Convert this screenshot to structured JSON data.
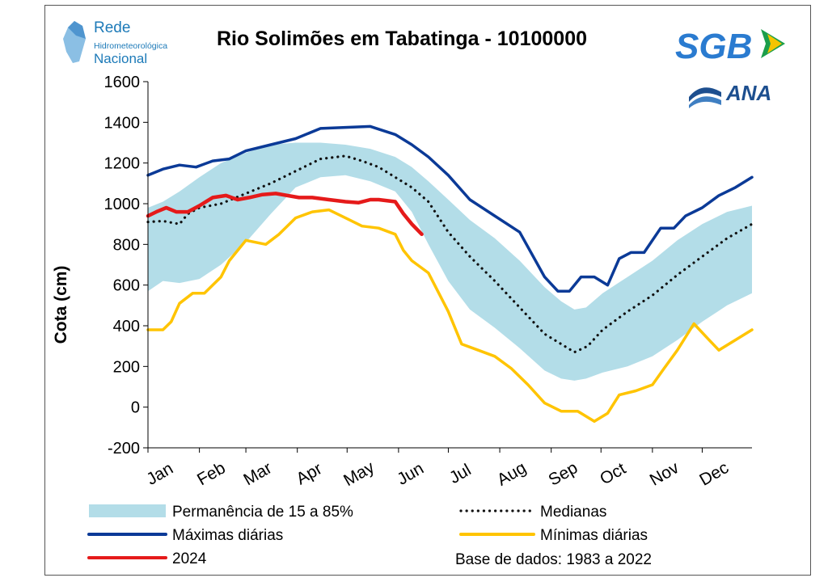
{
  "chart_data": {
    "type": "line",
    "title": "Rio Solimões em Tabatinga - 10100000",
    "ylabel": "Cota (cm)",
    "xlabel": "",
    "ylim": [
      -200,
      1600
    ],
    "yticks": [
      -200,
      0,
      200,
      400,
      600,
      800,
      1000,
      1200,
      1400,
      1600
    ],
    "months": [
      "Jan",
      "Feb",
      "Mar",
      "Apr",
      "May",
      "Jun",
      "Jul",
      "Aug",
      "Sep",
      "Oct",
      "Nov",
      "Dec"
    ],
    "series": [
      {
        "name": "Permanência de 15 a 85%",
        "kind": "band",
        "color": "#b3dde8",
        "x": [
          1,
          10,
          20,
          32,
          45,
          60,
          75,
          90,
          105,
          120,
          135,
          150,
          160,
          170,
          182,
          195,
          210,
          225,
          240,
          250,
          258,
          265,
          275,
          290,
          305,
          320,
          335,
          350,
          365
        ],
        "upper": [
          980,
          1010,
          1060,
          1130,
          1200,
          1250,
          1290,
          1300,
          1300,
          1290,
          1270,
          1230,
          1180,
          1110,
          1020,
          920,
          830,
          720,
          590,
          520,
          480,
          490,
          560,
          640,
          720,
          820,
          900,
          960,
          990
        ],
        "lower": [
          570,
          620,
          610,
          630,
          700,
          810,
          950,
          1080,
          1130,
          1140,
          1110,
          1060,
          960,
          800,
          620,
          480,
          390,
          290,
          180,
          140,
          130,
          140,
          170,
          200,
          250,
          330,
          420,
          500,
          560
        ]
      },
      {
        "name": "Medianas",
        "kind": "dotted",
        "color": "#111111",
        "x": [
          1,
          10,
          20,
          25,
          32,
          45,
          60,
          75,
          90,
          105,
          120,
          130,
          140,
          150,
          160,
          170,
          182,
          195,
          210,
          225,
          240,
          250,
          258,
          266,
          275,
          290,
          305,
          320,
          335,
          350,
          365
        ],
        "y": [
          910,
          915,
          900,
          950,
          980,
          1000,
          1050,
          1100,
          1160,
          1220,
          1235,
          1210,
          1180,
          1130,
          1080,
          1010,
          860,
          740,
          620,
          490,
          360,
          310,
          270,
          300,
          380,
          470,
          550,
          650,
          740,
          830,
          900
        ]
      },
      {
        "name": "Máximas diárias",
        "kind": "line",
        "color": "#0b3a97",
        "x": [
          1,
          10,
          20,
          30,
          40,
          50,
          60,
          75,
          90,
          105,
          120,
          135,
          150,
          160,
          170,
          182,
          195,
          210,
          225,
          240,
          248,
          255,
          262,
          270,
          278,
          285,
          292,
          300,
          310,
          318,
          325,
          335,
          345,
          355,
          365
        ],
        "y": [
          1140,
          1170,
          1190,
          1180,
          1210,
          1220,
          1260,
          1290,
          1320,
          1370,
          1375,
          1380,
          1340,
          1290,
          1230,
          1140,
          1020,
          940,
          860,
          640,
          570,
          570,
          640,
          640,
          600,
          730,
          760,
          760,
          880,
          880,
          940,
          980,
          1040,
          1080,
          1130
        ]
      },
      {
        "name": "Mínimas diárias",
        "kind": "line",
        "color": "#ffc400",
        "x": [
          1,
          10,
          15,
          20,
          28,
          35,
          45,
          50,
          60,
          72,
          80,
          90,
          100,
          110,
          120,
          130,
          140,
          150,
          155,
          160,
          170,
          182,
          190,
          200,
          210,
          220,
          230,
          240,
          250,
          260,
          270,
          278,
          285,
          295,
          305,
          312,
          320,
          330,
          338,
          345,
          355,
          365
        ],
        "y": [
          380,
          380,
          420,
          510,
          560,
          560,
          640,
          720,
          820,
          800,
          850,
          930,
          960,
          970,
          930,
          890,
          880,
          850,
          770,
          720,
          660,
          470,
          310,
          280,
          250,
          190,
          110,
          20,
          -20,
          -20,
          -70,
          -30,
          60,
          80,
          110,
          190,
          280,
          410,
          340,
          280,
          330,
          380
        ]
      },
      {
        "name": "2024",
        "kind": "line",
        "color": "#e51a1a",
        "x": [
          1,
          6,
          12,
          18,
          25,
          32,
          40,
          48,
          55,
          62,
          70,
          78,
          85,
          92,
          100,
          110,
          120,
          128,
          135,
          140,
          150,
          155,
          160,
          166
        ],
        "y": [
          940,
          960,
          980,
          960,
          960,
          990,
          1030,
          1040,
          1020,
          1030,
          1045,
          1050,
          1040,
          1030,
          1030,
          1020,
          1010,
          1005,
          1020,
          1020,
          1010,
          950,
          900,
          850
        ]
      }
    ],
    "legend": {
      "items": [
        {
          "label": "Permanência de 15 a 85%",
          "style": "band"
        },
        {
          "label": "Medianas",
          "style": "dotted"
        },
        {
          "label": "Máximas diárias",
          "style": "line"
        },
        {
          "label": "Mínimas diárias",
          "style": "line"
        },
        {
          "label": "2024",
          "style": "line"
        }
      ],
      "note": "Base de dados: 1983 a 2022",
      "placement": "bottom"
    }
  },
  "logos": {
    "rede": {
      "line1": "Rede",
      "line2": "Hidrometeorológica",
      "line3": "Nacional",
      "color": "#1d7ab8"
    },
    "sgb": {
      "text": "SGB",
      "color": "#2a7bd0"
    },
    "ana": {
      "text": "ANA",
      "color": "#1d4f8f"
    }
  }
}
